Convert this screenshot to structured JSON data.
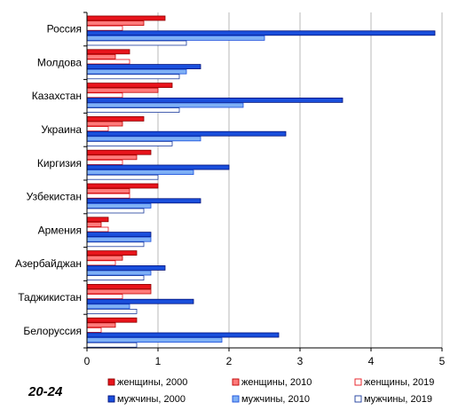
{
  "chart_data": {
    "type": "bar",
    "orientation": "horizontal",
    "categories": [
      "Россия",
      "Молдова",
      "Казахстан",
      "Украина",
      "Киргизия",
      "Узбекистан",
      "Армения",
      "Азербайджан",
      "Таджикистан",
      "Белоруссия"
    ],
    "series": [
      {
        "name": "женщины, 2000",
        "color": "#e8141c",
        "border": "#8b0000",
        "values": [
          1.1,
          0.6,
          1.2,
          0.8,
          0.9,
          1.0,
          0.3,
          0.7,
          0.9,
          0.7
        ]
      },
      {
        "name": "женщины, 2010",
        "color": "#ff7b7b",
        "border": "#c00000",
        "values": [
          0.8,
          0.4,
          1.0,
          0.5,
          0.7,
          0.6,
          0.2,
          0.5,
          0.9,
          0.4
        ]
      },
      {
        "name": "женщины, 2019",
        "color": "#ffffff",
        "border": "#e8141c",
        "values": [
          0.5,
          0.6,
          0.5,
          0.3,
          0.5,
          0.6,
          0.3,
          0.4,
          0.5,
          0.2
        ]
      },
      {
        "name": "мужчины, 2000",
        "color": "#1a4fdc",
        "border": "#00107a",
        "values": [
          4.9,
          1.6,
          3.6,
          2.8,
          2.0,
          1.6,
          0.9,
          1.1,
          1.5,
          2.7
        ]
      },
      {
        "name": "мужчины, 2010",
        "color": "#7fb0f5",
        "border": "#1a4fdc",
        "values": [
          2.5,
          1.4,
          2.2,
          1.6,
          1.5,
          0.9,
          0.9,
          0.9,
          0.6,
          1.9
        ]
      },
      {
        "name": "мужчины, 2019",
        "color": "#ffffff",
        "border": "#1a3a9c",
        "values": [
          1.4,
          1.3,
          1.3,
          1.2,
          1.0,
          0.8,
          0.8,
          0.8,
          0.7,
          0.7
        ]
      }
    ],
    "xlim": [
      0,
      5
    ],
    "xticks": [
      "0",
      "1",
      "2",
      "3",
      "4",
      "5"
    ],
    "grid": true,
    "legend_position": "bottom"
  },
  "corner_label": "20-24"
}
